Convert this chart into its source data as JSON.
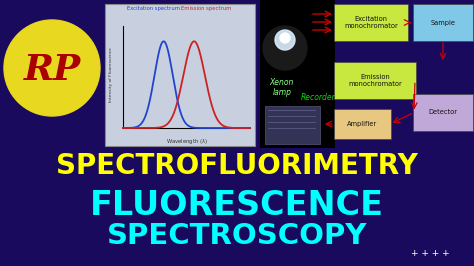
{
  "bg_color": "#1a0a5e",
  "title_line1": "SPECTROFLUORIMETRY",
  "title_line2": "FLUORESCENCE",
  "title_line3": "SPECTROSCOPY",
  "title_line1_color": "#ffff00",
  "title_line2_color": "#00ffff",
  "title_line3_color": "#00ffff",
  "title_fontsize1": 20,
  "title_fontsize2": 24,
  "title_fontsize3": 21,
  "plus_signs": "+ + + +",
  "plus_color": "#ffffff",
  "logo_circle_color": "#e8d820",
  "logo_text": "RP",
  "logo_text_color": "#aa0000",
  "excitation_color": "#2244cc",
  "emission_color": "#cc2222",
  "chart_bg": "#c8d0e0",
  "box_excitation_mono_color": "#c8e840",
  "box_emission_mono_color": "#c8e840",
  "box_sample_color": "#80c8e8",
  "box_detector_color": "#c0a8d8",
  "box_amplifier_color": "#e8c880",
  "arrow_color": "#cc0000",
  "recorder_text_color": "#00dd00",
  "xenon_text_color": "#88ff88",
  "black_bg": "#000000"
}
